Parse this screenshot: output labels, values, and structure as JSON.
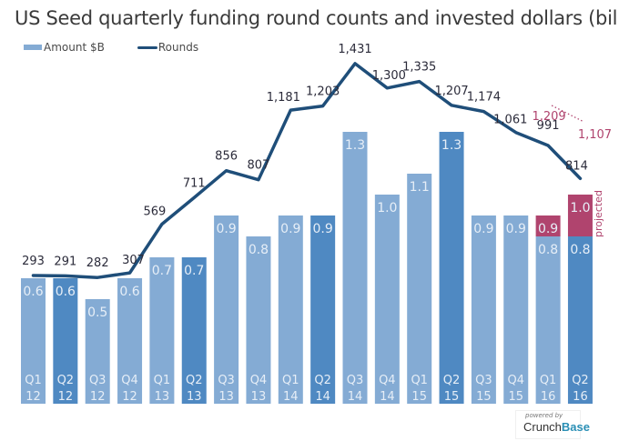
{
  "chart_data": {
    "type": "bar",
    "title": "US Seed quarterly funding round counts and invested dollars (billion)",
    "legend": {
      "placement": "top-left",
      "entries": [
        {
          "name": "Amount $B",
          "kind": "bar",
          "color": "#84abd4"
        },
        {
          "name": "Rounds",
          "kind": "line",
          "color": "#1f4e79"
        }
      ]
    },
    "categories": [
      {
        "q": "Q1",
        "y": "12"
      },
      {
        "q": "Q2",
        "y": "12"
      },
      {
        "q": "Q3",
        "y": "12"
      },
      {
        "q": "Q4",
        "y": "12"
      },
      {
        "q": "Q1",
        "y": "13"
      },
      {
        "q": "Q2",
        "y": "13"
      },
      {
        "q": "Q3",
        "y": "13"
      },
      {
        "q": "Q4",
        "y": "13"
      },
      {
        "q": "Q1",
        "y": "14"
      },
      {
        "q": "Q2",
        "y": "14"
      },
      {
        "q": "Q3",
        "y": "14"
      },
      {
        "q": "Q4",
        "y": "14"
      },
      {
        "q": "Q1",
        "y": "15"
      },
      {
        "q": "Q2",
        "y": "15"
      },
      {
        "q": "Q3",
        "y": "15"
      },
      {
        "q": "Q4",
        "y": "15"
      },
      {
        "q": "Q1",
        "y": "16"
      },
      {
        "q": "Q2",
        "y": "16"
      }
    ],
    "series": [
      {
        "name": "Amount $B",
        "type": "bar",
        "values": [
          0.6,
          0.6,
          0.5,
          0.6,
          0.7,
          0.7,
          0.9,
          0.8,
          0.9,
          0.9,
          1.3,
          1.0,
          1.1,
          1.3,
          0.9,
          0.9,
          0.8,
          0.8
        ],
        "labels": [
          "0.6",
          "0.6",
          "0.5",
          "0.6",
          "0.7",
          "0.7",
          "0.9",
          "0.8",
          "0.9",
          "0.9",
          "1.3",
          "1.0",
          "1.1",
          "1.3",
          "0.9",
          "0.9",
          "0.8",
          "0.8"
        ],
        "highlight_q2": true
      },
      {
        "name": "Amount $B (projected)",
        "type": "bar-projected",
        "values": [
          null,
          null,
          null,
          null,
          null,
          null,
          null,
          null,
          null,
          null,
          null,
          null,
          null,
          null,
          null,
          null,
          0.9,
          1.0
        ],
        "labels": [
          "",
          "",
          "",
          "",
          "",
          "",
          "",
          "",
          "",
          "",
          "",
          "",
          "",
          "",
          "",
          "",
          "0.9",
          "1.0"
        ]
      },
      {
        "name": "Rounds",
        "type": "line",
        "values": [
          293,
          291,
          282,
          307,
          569,
          711,
          856,
          807,
          1181,
          1203,
          1431,
          1300,
          1335,
          1207,
          1174,
          1061,
          991,
          814
        ],
        "labels": [
          "293",
          "291",
          "282",
          "307",
          "569",
          "711",
          "856",
          "807",
          "1,181",
          "1,203",
          "1,431",
          "1,300",
          "1,335",
          "1,207",
          "1,174",
          "1,061",
          "991",
          "814"
        ]
      },
      {
        "name": "Rounds (projected)",
        "type": "line-dotted",
        "values": [
          null,
          null,
          null,
          null,
          null,
          null,
          null,
          null,
          null,
          null,
          null,
          null,
          null,
          null,
          null,
          null,
          1209,
          1107
        ],
        "labels": [
          "",
          "",
          "",
          "",
          "",
          "",
          "",
          "",
          "",
          "",
          "",
          "",
          "",
          "",
          "",
          "",
          "1,209",
          "1,107"
        ]
      }
    ],
    "annotations": [
      {
        "text": "projected",
        "target": "Q2 16"
      }
    ],
    "colors": {
      "bar_light": "#84abd4",
      "bar_dark": "#4f89c2",
      "line": "#1f4e79",
      "projected": "#b0446e"
    },
    "xlabel": "",
    "ylabel": "",
    "ylim_amount": [
      0,
      1.3
    ],
    "ylim_rounds": [
      0,
      1431
    ],
    "grid": false
  },
  "footer": {
    "powered_by": "powered by",
    "brand_part1": "Crunch",
    "brand_part2": "Base"
  }
}
